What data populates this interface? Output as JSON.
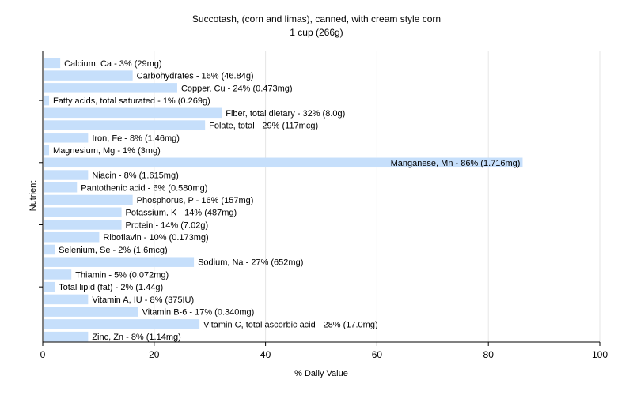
{
  "chart_data": {
    "type": "bar",
    "orientation": "horizontal",
    "title": "Succotash, (corn and limas), canned, with cream style corn",
    "subtitle": "1 cup (266g)",
    "xlabel": "% Daily Value",
    "ylabel": "Nutrient",
    "xlim": [
      0,
      100
    ],
    "xticks": [
      0,
      20,
      40,
      60,
      80,
      100
    ],
    "grid": "vertical",
    "bar_color": "#c6dffb",
    "categories": [
      "Calcium, Ca",
      "Carbohydrates",
      "Copper, Cu",
      "Fatty acids, total saturated",
      "Fiber, total dietary",
      "Folate, total",
      "Iron, Fe",
      "Magnesium, Mg",
      "Manganese, Mn",
      "Niacin",
      "Pantothenic acid",
      "Phosphorus, P",
      "Potassium, K",
      "Protein",
      "Riboflavin",
      "Selenium, Se",
      "Sodium, Na",
      "Thiamin",
      "Total lipid (fat)",
      "Vitamin A, IU",
      "Vitamin B-6",
      "Vitamin C, total ascorbic acid",
      "Zinc, Zn"
    ],
    "values": [
      3,
      16,
      24,
      1,
      32,
      29,
      8,
      1,
      86,
      8,
      6,
      16,
      14,
      14,
      10,
      2,
      27,
      5,
      2,
      8,
      17,
      28,
      8
    ],
    "labels": [
      "Calcium, Ca - 3% (29mg)",
      "Carbohydrates - 16% (46.84g)",
      "Copper, Cu - 24% (0.473mg)",
      "Fatty acids, total saturated - 1% (0.269g)",
      "Fiber, total dietary - 32% (8.0g)",
      "Folate, total - 29% (117mcg)",
      "Iron, Fe - 8% (1.46mg)",
      "Magnesium, Mg - 1% (3mg)",
      "Manganese, Mn - 86% (1.716mg)",
      "Niacin - 8% (1.615mg)",
      "Pantothenic acid - 6% (0.580mg)",
      "Phosphorus, P - 16% (157mg)",
      "Potassium, K - 14% (487mg)",
      "Protein - 14% (7.02g)",
      "Riboflavin - 10% (0.173mg)",
      "Selenium, Se - 2% (1.6mcg)",
      "Sodium, Na - 27% (652mg)",
      "Thiamin - 5% (0.072mg)",
      "Total lipid (fat) - 2% (1.44g)",
      "Vitamin A, IU - 8% (375IU)",
      "Vitamin B-6 - 17% (0.340mg)",
      "Vitamin C, total ascorbic acid - 28% (17.0mg)",
      "Zinc, Zn - 8% (1.14mg)"
    ]
  }
}
